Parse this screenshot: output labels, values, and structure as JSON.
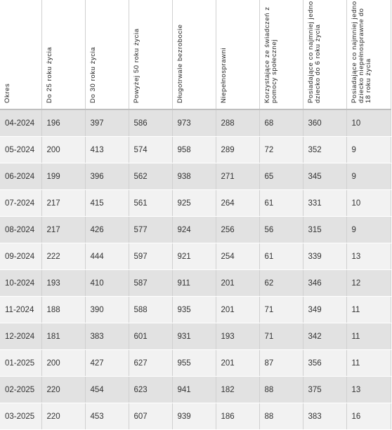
{
  "table": {
    "headers": [
      "Okres",
      "Do 25 roku życia",
      "Do 30 roku życia",
      "Powyżej 50 roku życia",
      "Długotrwale bezrobocie",
      "Niepełnosprawni",
      "Korzystające ze świadczeń z pomocy społecznej",
      "Posiadające co najmniej jedno dziecko do 6 roku życia",
      "Posiadające co najmniej jedno dziecko niepełnosprawne do 18 roku życia"
    ],
    "rows": [
      [
        "04-2024",
        "196",
        "397",
        "586",
        "973",
        "288",
        "68",
        "360",
        "10"
      ],
      [
        "05-2024",
        "200",
        "413",
        "574",
        "958",
        "289",
        "72",
        "352",
        "9"
      ],
      [
        "06-2024",
        "199",
        "396",
        "562",
        "938",
        "271",
        "65",
        "345",
        "9"
      ],
      [
        "07-2024",
        "217",
        "415",
        "561",
        "925",
        "264",
        "61",
        "331",
        "10"
      ],
      [
        "08-2024",
        "217",
        "426",
        "577",
        "924",
        "256",
        "56",
        "315",
        "9"
      ],
      [
        "09-2024",
        "222",
        "444",
        "597",
        "921",
        "254",
        "61",
        "339",
        "13"
      ],
      [
        "10-2024",
        "193",
        "410",
        "587",
        "911",
        "201",
        "62",
        "346",
        "12"
      ],
      [
        "11-2024",
        "188",
        "390",
        "588",
        "935",
        "201",
        "71",
        "349",
        "11"
      ],
      [
        "12-2024",
        "181",
        "383",
        "601",
        "931",
        "193",
        "71",
        "342",
        "11"
      ],
      [
        "01-2025",
        "200",
        "427",
        "627",
        "955",
        "201",
        "87",
        "356",
        "11"
      ],
      [
        "02-2025",
        "220",
        "454",
        "623",
        "941",
        "182",
        "88",
        "375",
        "13"
      ],
      [
        "03-2025",
        "220",
        "453",
        "607",
        "939",
        "186",
        "88",
        "383",
        "16"
      ]
    ]
  },
  "colors": {
    "row_odd": "#e2e2e2",
    "row_even": "#f2f2f2",
    "divider": "#d0d0d0",
    "text": "#333333"
  }
}
